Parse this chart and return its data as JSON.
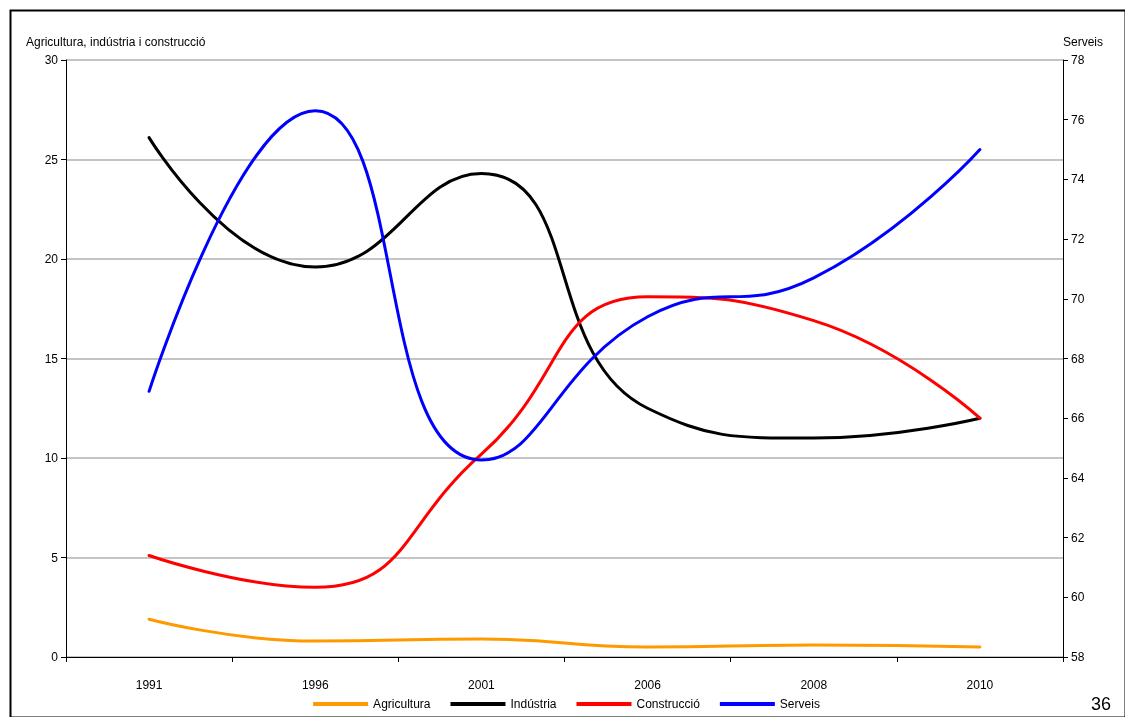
{
  "chart_data": {
    "type": "line",
    "ylabel": "Agricultura, indústria i construcció",
    "y2label": "Serveis",
    "categories": [
      "1991",
      "1996",
      "2001",
      "2006",
      "2008",
      "2010"
    ],
    "series": [
      {
        "name": "Agricultura",
        "color": "#ff9900",
        "values": [
          1.9,
          0.8,
          0.9,
          0.5,
          0.6,
          0.5
        ]
      },
      {
        "name": "Indústria",
        "color": "#000000",
        "values": [
          26.1,
          19.6,
          24.3,
          12.5,
          11.0,
          12.0
        ]
      },
      {
        "name": "Construcció",
        "color": "#ff0000",
        "values": [
          5.1,
          3.5,
          10.2,
          18.1,
          16.9,
          12.0
        ]
      },
      {
        "name": "Serveis",
        "color": "#0000ff",
        "axis": "y2",
        "values": [
          66.9,
          76.3,
          64.6,
          69.4,
          70.7,
          75.0
        ]
      }
    ],
    "ylim": [
      0,
      30
    ],
    "yticks": [
      0,
      5,
      10,
      15,
      20,
      25,
      30
    ],
    "y2lim": [
      58,
      78
    ],
    "y2ticks": [
      58,
      60,
      62,
      64,
      66,
      68,
      70,
      72,
      74,
      76,
      78
    ],
    "grid": "y",
    "legend": "bottom",
    "marker": "none",
    "line_style": "solid",
    "annotations": [
      "36"
    ]
  }
}
